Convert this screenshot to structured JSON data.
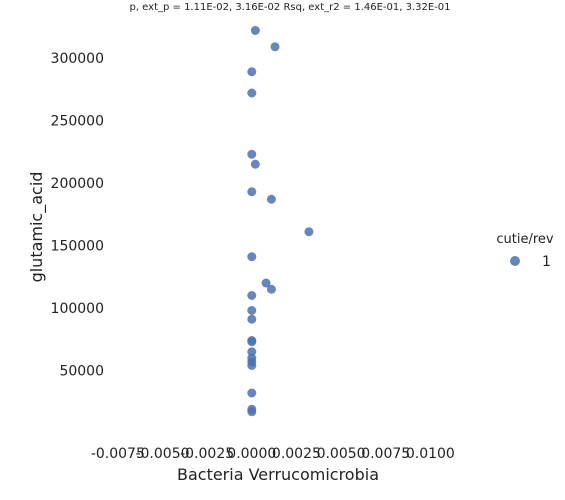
{
  "chart_data": {
    "type": "scatter",
    "title": "p, ext_p = 1.11E-02, 3.16E-02 Rsq, ext_r2 = 1.46E-01, 3.32E-01",
    "xlabel": "Bacteria Verrucomicrobia",
    "ylabel": "glutamic_acid",
    "xlim": [
      -0.0085,
      0.0125
    ],
    "ylim": [
      0,
      340000
    ],
    "x_ticks": [
      "-0.0075",
      "-0.0050",
      "-0.0025",
      "0.0000",
      "0.0025",
      "0.0050",
      "0.0075",
      "0.0100"
    ],
    "x_tick_values": [
      -0.0075,
      -0.005,
      -0.0025,
      0.0,
      0.0025,
      0.005,
      0.0075,
      0.01
    ],
    "y_ticks": [
      "50000",
      "100000",
      "150000",
      "200000",
      "250000",
      "300000"
    ],
    "y_tick_values": [
      50000,
      100000,
      150000,
      200000,
      250000,
      300000
    ],
    "grid": false,
    "legend": {
      "title": "cutie/rev",
      "placement": "right",
      "entries": [
        {
          "label": "1",
          "color": "#4C72B0"
        }
      ]
    },
    "series": [
      {
        "name": "1",
        "color": "#4C72B0",
        "points": [
          {
            "x": 0.0002,
            "y": 322000
          },
          {
            "x": 0.0013,
            "y": 309000
          },
          {
            "x": 0.0,
            "y": 289000
          },
          {
            "x": 0.0,
            "y": 272000
          },
          {
            "x": 0.0,
            "y": 223000
          },
          {
            "x": 0.0002,
            "y": 215000
          },
          {
            "x": 0.0,
            "y": 193000
          },
          {
            "x": 0.0011,
            "y": 187000
          },
          {
            "x": 0.0032,
            "y": 161000
          },
          {
            "x": 0.0,
            "y": 141000
          },
          {
            "x": 0.0008,
            "y": 120000
          },
          {
            "x": 0.0011,
            "y": 115000
          },
          {
            "x": 0.0,
            "y": 110000
          },
          {
            "x": 0.0,
            "y": 98000
          },
          {
            "x": 0.0,
            "y": 91000
          },
          {
            "x": 0.0,
            "y": 74000
          },
          {
            "x": 0.0,
            "y": 73000
          },
          {
            "x": 0.0,
            "y": 65000
          },
          {
            "x": 0.0,
            "y": 60000
          },
          {
            "x": 0.0,
            "y": 57000
          },
          {
            "x": 0.0,
            "y": 54000
          },
          {
            "x": 0.0,
            "y": 32000
          },
          {
            "x": 0.0,
            "y": 19000
          },
          {
            "x": 0.0,
            "y": 17000
          }
        ]
      }
    ]
  }
}
